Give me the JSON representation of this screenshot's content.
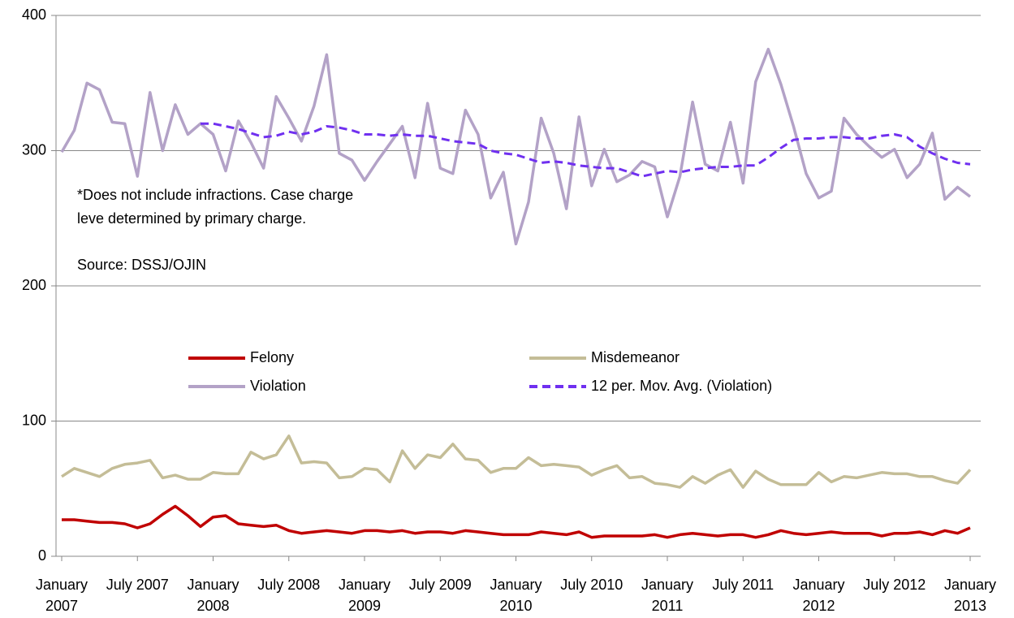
{
  "chart_data": {
    "type": "line",
    "categories": [
      "January 2007",
      null,
      null,
      null,
      null,
      null,
      "July 2007",
      null,
      null,
      null,
      null,
      null,
      "January 2008",
      null,
      null,
      null,
      null,
      null,
      "July 2008",
      null,
      null,
      null,
      null,
      null,
      "January 2009",
      null,
      null,
      null,
      null,
      null,
      "July 2009",
      null,
      null,
      null,
      null,
      null,
      "January 2010",
      null,
      null,
      null,
      null,
      null,
      "July 2010",
      null,
      null,
      null,
      null,
      null,
      "January 2011",
      null,
      null,
      null,
      null,
      null,
      "July 2011",
      null,
      null,
      null,
      null,
      null,
      "January 2012",
      null,
      null,
      null,
      null,
      null,
      "July 2012",
      null,
      null,
      null,
      null,
      null,
      "January 2013"
    ],
    "series": [
      {
        "name": "Felony",
        "color": "#c00000",
        "values": [
          27,
          27,
          26,
          25,
          25,
          24,
          21,
          24,
          31,
          37,
          30,
          22,
          29,
          30,
          24,
          23,
          22,
          23,
          19,
          17,
          18,
          19,
          18,
          17,
          19,
          19,
          18,
          19,
          17,
          18,
          18,
          17,
          19,
          18,
          17,
          16,
          16,
          16,
          18,
          17,
          16,
          18,
          14,
          15,
          15,
          15,
          15,
          16,
          14,
          16,
          17,
          16,
          15,
          16,
          16,
          14,
          16,
          19,
          17,
          16,
          17,
          18,
          17,
          17,
          17,
          15,
          17,
          17,
          18,
          16,
          19,
          17,
          21
        ]
      },
      {
        "name": "Misdemeanor",
        "color": "#c4bd97",
        "values": [
          59,
          65,
          62,
          59,
          65,
          68,
          69,
          71,
          58,
          60,
          57,
          57,
          62,
          61,
          61,
          77,
          72,
          75,
          89,
          69,
          70,
          69,
          58,
          59,
          65,
          64,
          55,
          78,
          65,
          75,
          73,
          83,
          72,
          71,
          62,
          65,
          65,
          73,
          67,
          68,
          67,
          66,
          60,
          64,
          67,
          58,
          59,
          54,
          53,
          51,
          59,
          54,
          60,
          64,
          51,
          63,
          57,
          53,
          53,
          53,
          62,
          55,
          59,
          58,
          60,
          62,
          61,
          61,
          59,
          59,
          56,
          54,
          64
        ]
      },
      {
        "name": "Violation",
        "color": "#b3a2c7",
        "values": [
          299,
          315,
          350,
          345,
          321,
          320,
          281,
          343,
          300,
          334,
          312,
          320,
          312,
          285,
          322,
          306,
          287,
          340,
          324,
          307,
          333,
          371,
          298,
          293,
          278,
          292,
          305,
          318,
          280,
          335,
          287,
          283,
          330,
          312,
          265,
          284,
          231,
          262,
          324,
          298,
          257,
          325,
          274,
          301,
          277,
          282,
          292,
          288,
          251,
          281,
          336,
          290,
          285,
          321,
          276,
          351,
          375,
          349,
          318,
          283,
          265,
          270,
          324,
          312,
          303,
          295,
          301,
          280,
          290,
          313,
          264,
          273,
          266
        ]
      },
      {
        "name": "12 per. Mov. Avg. (Violation)",
        "color": "#7030f0",
        "dashed": true,
        "values": [
          null,
          null,
          null,
          null,
          null,
          null,
          null,
          null,
          null,
          null,
          null,
          320,
          320,
          318,
          316,
          313,
          310,
          311,
          314,
          312,
          314,
          318,
          317,
          315,
          312,
          312,
          311,
          312,
          311,
          311,
          309,
          307,
          306,
          305,
          300,
          298,
          297,
          294,
          291,
          292,
          291,
          289,
          288,
          287,
          287,
          284,
          281,
          283,
          285,
          284,
          286,
          287,
          288,
          288,
          289,
          289,
          295,
          302,
          308,
          309,
          309,
          310,
          310,
          309,
          309,
          311,
          312,
          310,
          303,
          298,
          294,
          291,
          290
        ]
      }
    ],
    "ylim": [
      0,
      400
    ],
    "yticks": [
      0,
      100,
      200,
      300,
      400
    ],
    "grid": true,
    "legend_position": "center",
    "annotations": [
      "*Does not include infractions. Case charge",
      "leve determined by primary charge.",
      "Source: DSSJ/OJIN"
    ]
  }
}
